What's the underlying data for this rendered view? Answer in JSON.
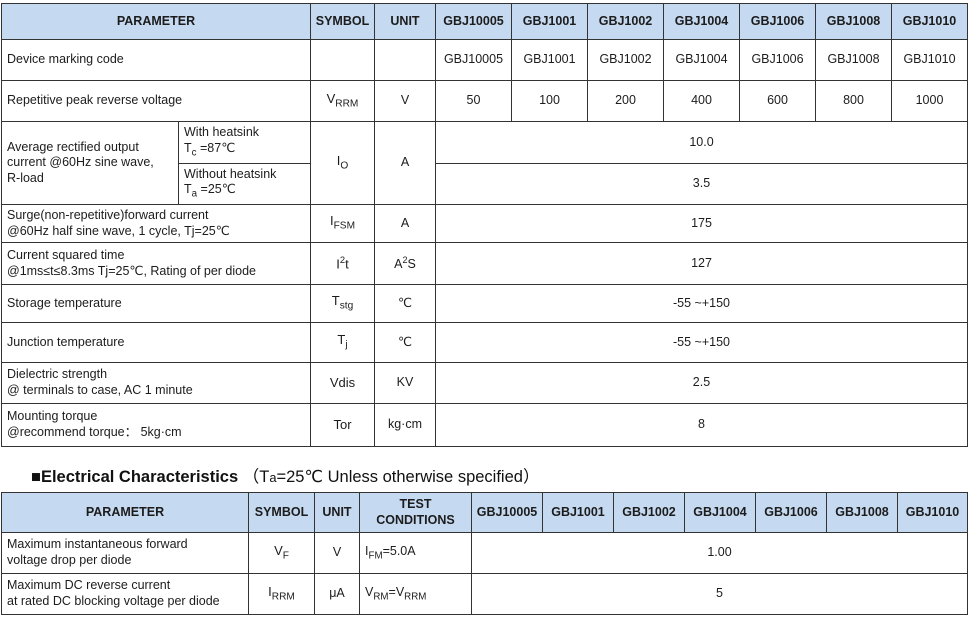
{
  "models": [
    "GBJ10005",
    "GBJ1001",
    "GBJ1002",
    "GBJ1004",
    "GBJ1006",
    "GBJ1008",
    "GBJ1010"
  ],
  "table1": {
    "headers": {
      "parameter": "PARAMETER",
      "symbol": "SYMBOL",
      "unit": "UNIT"
    },
    "rows": {
      "marking": {
        "param": "Device marking code",
        "values": [
          "GBJ10005",
          "GBJ1001",
          "GBJ1002",
          "GBJ1004",
          "GBJ1006",
          "GBJ1008",
          "GBJ1010"
        ]
      },
      "vrrm": {
        "param": "Repetitive peak reverse voltage",
        "symbol": [
          {
            "t": "V"
          },
          {
            "t": "RRM",
            "s": "sub"
          }
        ],
        "unit": "V",
        "values": [
          "50",
          "100",
          "200",
          "400",
          "600",
          "800",
          "1000"
        ]
      },
      "io": {
        "param": "Average rectified output\ncurrent  @60Hz sine wave,\nR-load",
        "sub1": [
          {
            "t": "With heatsink\nT"
          },
          {
            "t": "c",
            "s": "sub"
          },
          {
            "t": " =87℃"
          }
        ],
        "sub2": [
          {
            "t": "Without heatsink\nT"
          },
          {
            "t": "a",
            "s": "sub"
          },
          {
            "t": " =25℃"
          }
        ],
        "symbol": [
          {
            "t": "I"
          },
          {
            "t": "O",
            "s": "sub"
          }
        ],
        "unit": "A",
        "value1": "10.0",
        "value2": "3.5"
      },
      "ifsm": {
        "param": "Surge(non-repetitive)forward current\n@60Hz half sine wave, 1 cycle, Tj=25℃",
        "symbol": [
          {
            "t": "I"
          },
          {
            "t": "FSM",
            "s": "sub"
          }
        ],
        "unit": "A",
        "value": "175"
      },
      "i2t": {
        "param": "Current squared time\n@1ms≤t≤8.3ms Tj=25℃, Rating of per diode",
        "symbol": [
          {
            "t": "I"
          },
          {
            "t": "2",
            "s": "sup"
          },
          {
            "t": "t"
          }
        ],
        "unit": [
          {
            "t": "A"
          },
          {
            "t": "2",
            "s": "sup"
          },
          {
            "t": "S"
          }
        ],
        "value": "127"
      },
      "tstg": {
        "param": "Storage temperature",
        "symbol": [
          {
            "t": "T"
          },
          {
            "t": "stg",
            "s": "sub"
          }
        ],
        "unit": "℃",
        "value": "-55 ~+150"
      },
      "tj": {
        "param": "Junction temperature",
        "symbol": [
          {
            "t": "T"
          },
          {
            "t": "j",
            "s": "sub"
          }
        ],
        "unit": "℃",
        "value": "-55 ~+150"
      },
      "vdis": {
        "param": "Dielectric strength\n@ terminals to case, AC 1 minute",
        "symbol": "Vdis",
        "unit": "KV",
        "value": "2.5"
      },
      "tor": {
        "param": "Mounting torque\n@recommend torque： 5kg·cm",
        "symbol": "Tor",
        "unit": "kg·cm",
        "value": "8"
      }
    }
  },
  "section2": {
    "title": [
      {
        "t": "■Electrical Characteristics",
        "s": "b"
      },
      {
        "t": " （T"
      },
      {
        "t": "a",
        "s": "sub"
      },
      {
        "t": "=25℃ Unless otherwise specified）"
      }
    ]
  },
  "table2": {
    "headers": {
      "parameter": "PARAMETER",
      "symbol": "SYMBOL",
      "unit": "UNIT",
      "test": "TEST\nCONDITIONS"
    },
    "rows": {
      "vf": {
        "param": "Maximum instantaneous forward\nvoltage drop per diode",
        "symbol": [
          {
            "t": "V"
          },
          {
            "t": "F",
            "s": "sub"
          }
        ],
        "unit": "V",
        "test": [
          {
            "t": "I"
          },
          {
            "t": "FM",
            "s": "sub"
          },
          {
            "t": "=5.0A"
          }
        ],
        "value": "1.00"
      },
      "irrm": {
        "param": "Maximum DC reverse current\nat rated DC blocking voltage per diode",
        "symbol": [
          {
            "t": "I"
          },
          {
            "t": "RRM",
            "s": "sub"
          }
        ],
        "unit": "μA",
        "test": [
          {
            "t": "V"
          },
          {
            "t": "RM",
            "s": "sub"
          },
          {
            "t": "=V"
          },
          {
            "t": "RRM",
            "s": "sub"
          }
        ],
        "value": "5"
      }
    }
  }
}
